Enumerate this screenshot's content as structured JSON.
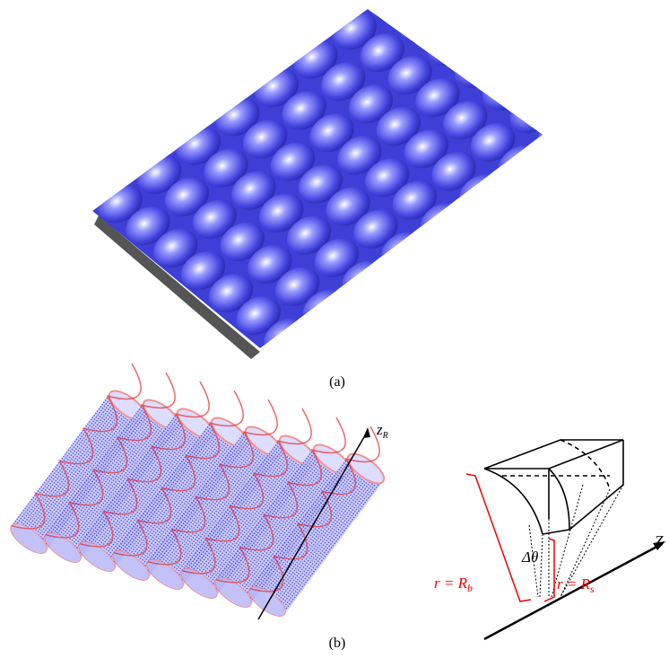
{
  "panel_a": {
    "caption": "(a)"
  },
  "panel_b": {
    "caption": "(b)",
    "axis_label": {
      "main": "z",
      "sub": "R"
    },
    "diagram": {
      "outer_radius": {
        "main": "r = R",
        "sub": "b"
      },
      "angle": "Δθ",
      "inner_radius": {
        "main": "r = R",
        "sub": "s"
      },
      "axis": "Z"
    }
  }
}
